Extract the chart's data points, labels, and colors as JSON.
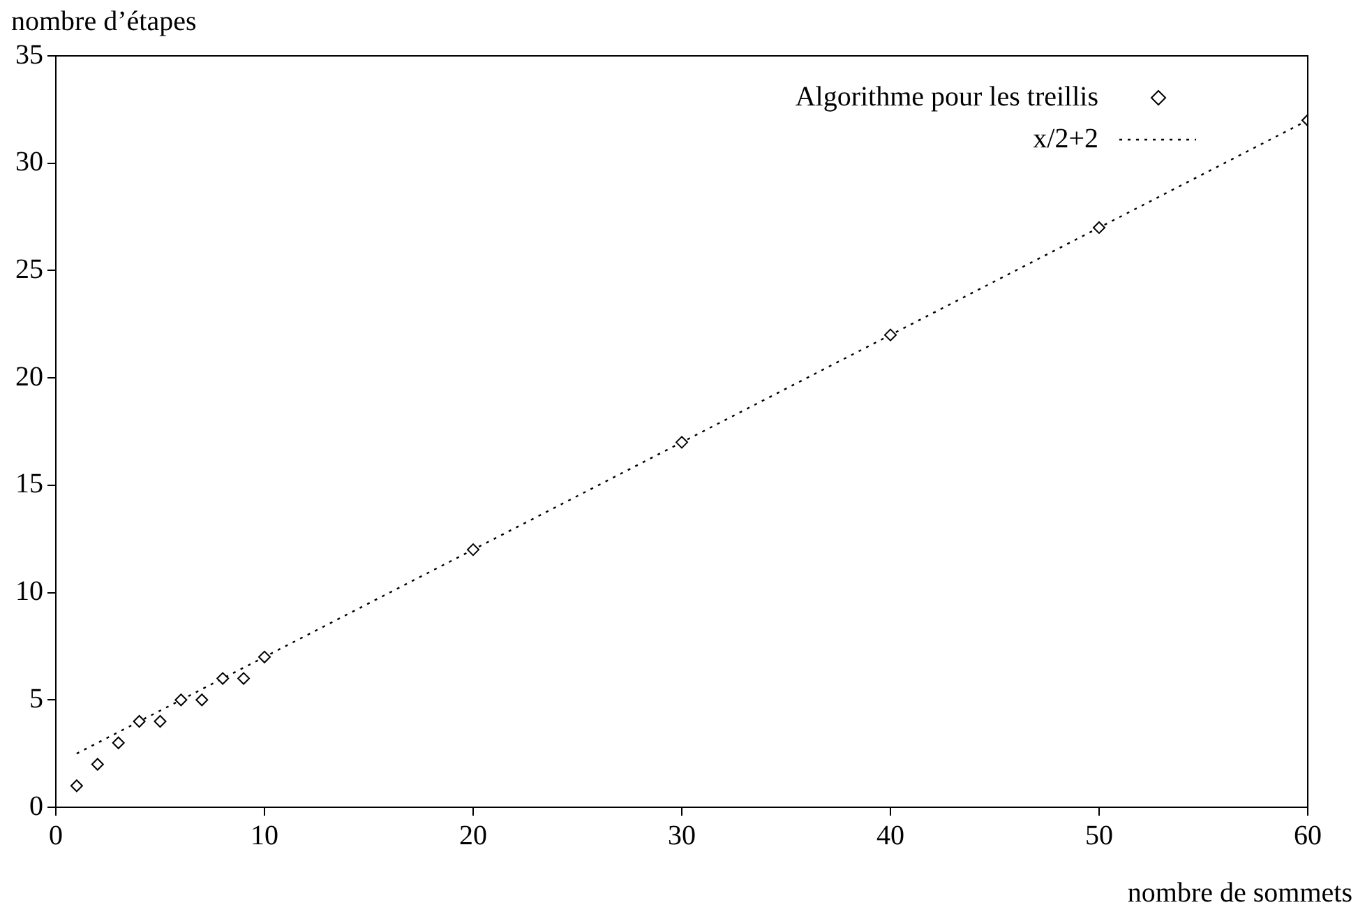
{
  "chart_data": {
    "type": "scatter",
    "xlabel": "nombre de sommets",
    "ylabel": "nombre d’étapes",
    "xlim": [
      0,
      60
    ],
    "ylim": [
      0,
      35
    ],
    "xticks": [
      0,
      10,
      20,
      30,
      40,
      50,
      60
    ],
    "yticks": [
      0,
      5,
      10,
      15,
      20,
      25,
      30,
      35
    ],
    "grid": false,
    "legend": "top right",
    "series": [
      {
        "name": "Algorithme pour les treillis",
        "marker": "diamond",
        "color": "#000000",
        "x": [
          1,
          2,
          3,
          4,
          5,
          6,
          7,
          8,
          9,
          10,
          20,
          30,
          40,
          50,
          60
        ],
        "values": [
          1,
          2,
          3,
          4,
          4,
          5,
          5,
          6,
          6,
          7,
          12,
          17,
          22,
          27,
          32
        ]
      },
      {
        "name": "x/2+2",
        "type": "line",
        "marker": "none",
        "line_style": "dotted",
        "color": "#000000",
        "x": [
          1,
          60
        ],
        "values": [
          2.5,
          32
        ]
      }
    ]
  }
}
